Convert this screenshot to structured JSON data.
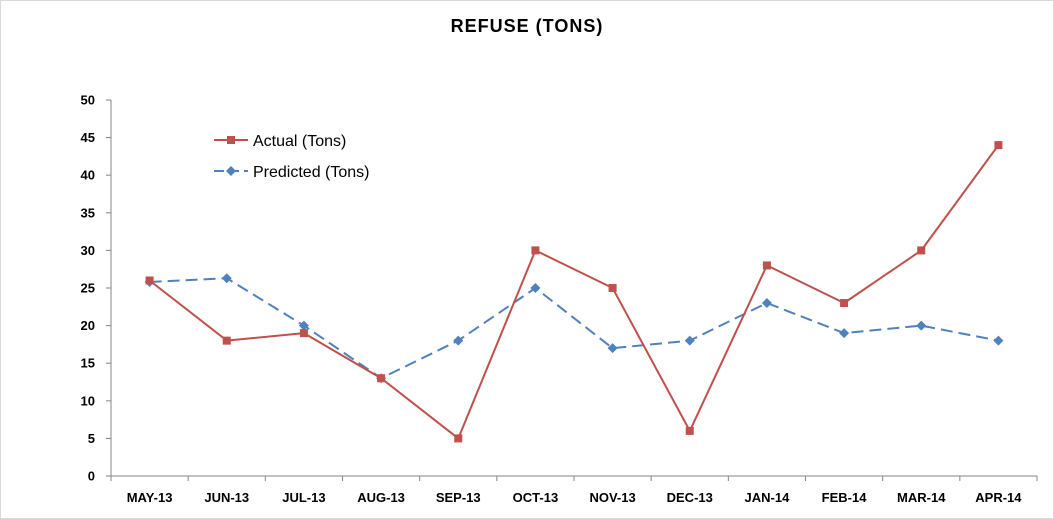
{
  "chart_data": {
    "type": "line",
    "title": "REFUSE (TONS)",
    "xlabel": "",
    "ylabel": "",
    "categories": [
      "MAY-13",
      "JUN-13",
      "JUL-13",
      "AUG-13",
      "SEP-13",
      "OCT-13",
      "NOV-13",
      "DEC-13",
      "JAN-14",
      "FEB-14",
      "MAR-14",
      "APR-14"
    ],
    "ylim": [
      0,
      50
    ],
    "yticks": [
      0,
      5,
      10,
      15,
      20,
      25,
      30,
      35,
      40,
      45,
      50
    ],
    "grid": false,
    "legend_position": "top-left",
    "series": [
      {
        "name": "Actual (Tons)",
        "color": "#c0504d",
        "marker": "square",
        "line_style": "solid",
        "values": [
          26,
          18,
          19,
          13,
          5,
          30,
          25,
          6,
          28,
          23,
          30,
          44
        ]
      },
      {
        "name": "Predicted (Tons)",
        "color": "#4f81bd",
        "marker": "diamond",
        "line_style": "dashed",
        "values": [
          25.8,
          26.3,
          20,
          13,
          18,
          25,
          17,
          18,
          23,
          19,
          20,
          18
        ]
      }
    ]
  }
}
